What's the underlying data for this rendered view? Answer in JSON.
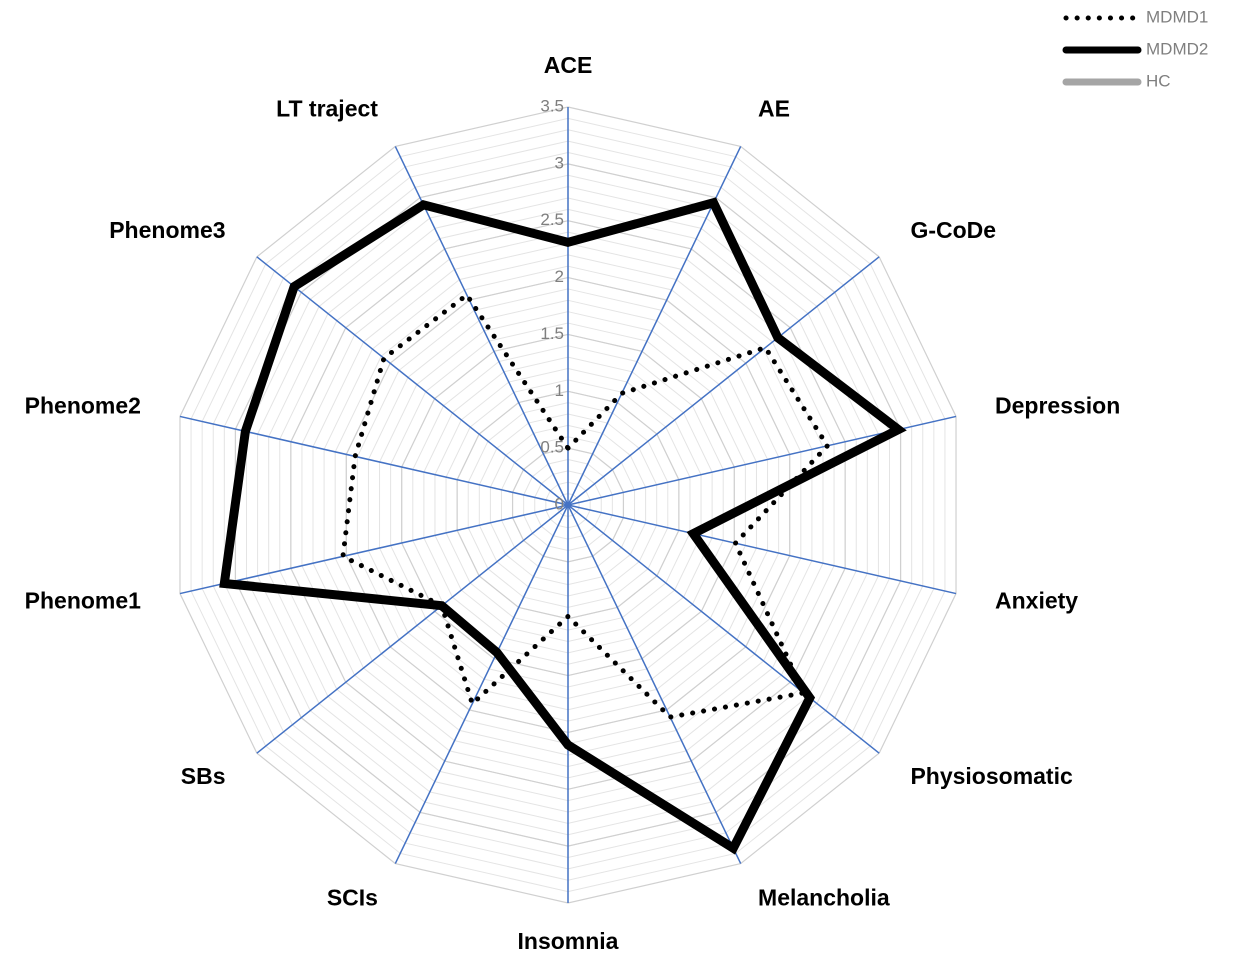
{
  "chart_data": {
    "type": "radar",
    "categories": [
      "ACE",
      "AE",
      "G-CoDe",
      "Depression",
      "Anxiety",
      "Physiosomatic",
      "Melancholia",
      "Insomnia",
      "SCIs",
      "SBs",
      "Phenome1",
      "Phenome2",
      "Phenome3",
      "LT traject"
    ],
    "series": [
      {
        "name": "MDMD1",
        "color": "#000000",
        "style": "dotted",
        "values": [
          0.5,
          1.09,
          2.22,
          2.34,
          1.51,
          2.65,
          2.07,
          0.98,
          1.94,
          1.42,
          2.03,
          1.92,
          2.07,
          2.05
        ]
      },
      {
        "name": "MDMD2",
        "color": "#000000",
        "style": "solid",
        "values": [
          2.31,
          2.95,
          2.36,
          2.98,
          1.13,
          2.72,
          3.35,
          2.11,
          1.44,
          1.42,
          3.1,
          2.91,
          3.08,
          2.93
        ]
      },
      {
        "name": "HC",
        "color": "#a5a5a5",
        "style": "solid",
        "values": [
          0,
          0,
          0,
          0,
          0,
          0,
          0,
          0,
          0,
          0,
          0,
          0,
          0,
          0
        ]
      }
    ],
    "ylim": [
      0,
      3.5
    ],
    "yticks": [
      0,
      0.5,
      1,
      1.5,
      2,
      2.5,
      3,
      3.5
    ],
    "minor_grid_step": 0.1,
    "grid": true,
    "legend": "top-right"
  }
}
